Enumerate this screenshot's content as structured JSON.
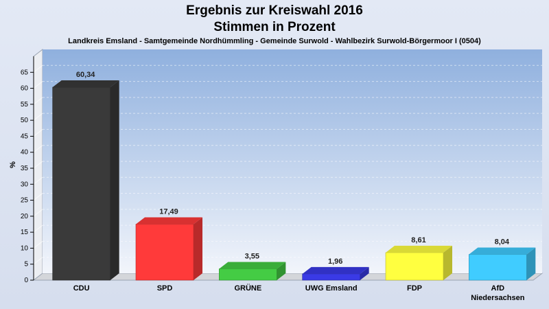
{
  "chart_data": {
    "type": "bar",
    "title": "Ergebnis zur Kreiswahl 2016",
    "title2": "Stimmen in Prozent",
    "subtitle": "Landkreis Emsland - Samtgemeinde Nordhümmling - Gemeinde Surwold - Wahlbezirk Surwold-Börgermoor I (0504)",
    "ylabel": "%",
    "xlabel": "",
    "ylim": [
      0,
      70
    ],
    "yticks": [
      0,
      5,
      10,
      15,
      20,
      25,
      30,
      35,
      40,
      45,
      50,
      55,
      60,
      65
    ],
    "grid": true,
    "categories": [
      [
        "CDU"
      ],
      [
        "SPD"
      ],
      [
        "GRÜNE"
      ],
      [
        "UWG Emsland"
      ],
      [
        "FDP"
      ],
      [
        "AfD",
        "Niedersachsen"
      ]
    ],
    "values": [
      60.34,
      17.49,
      3.55,
      1.96,
      8.61,
      8.04
    ],
    "value_labels": [
      "60,34",
      "17,49",
      "3,55",
      "1,96",
      "8,61",
      "8,04"
    ],
    "colors": [
      "#3a3a3a",
      "#ff3a3a",
      "#44cc44",
      "#3a3ae6",
      "#ffff40",
      "#40ccff"
    ]
  }
}
